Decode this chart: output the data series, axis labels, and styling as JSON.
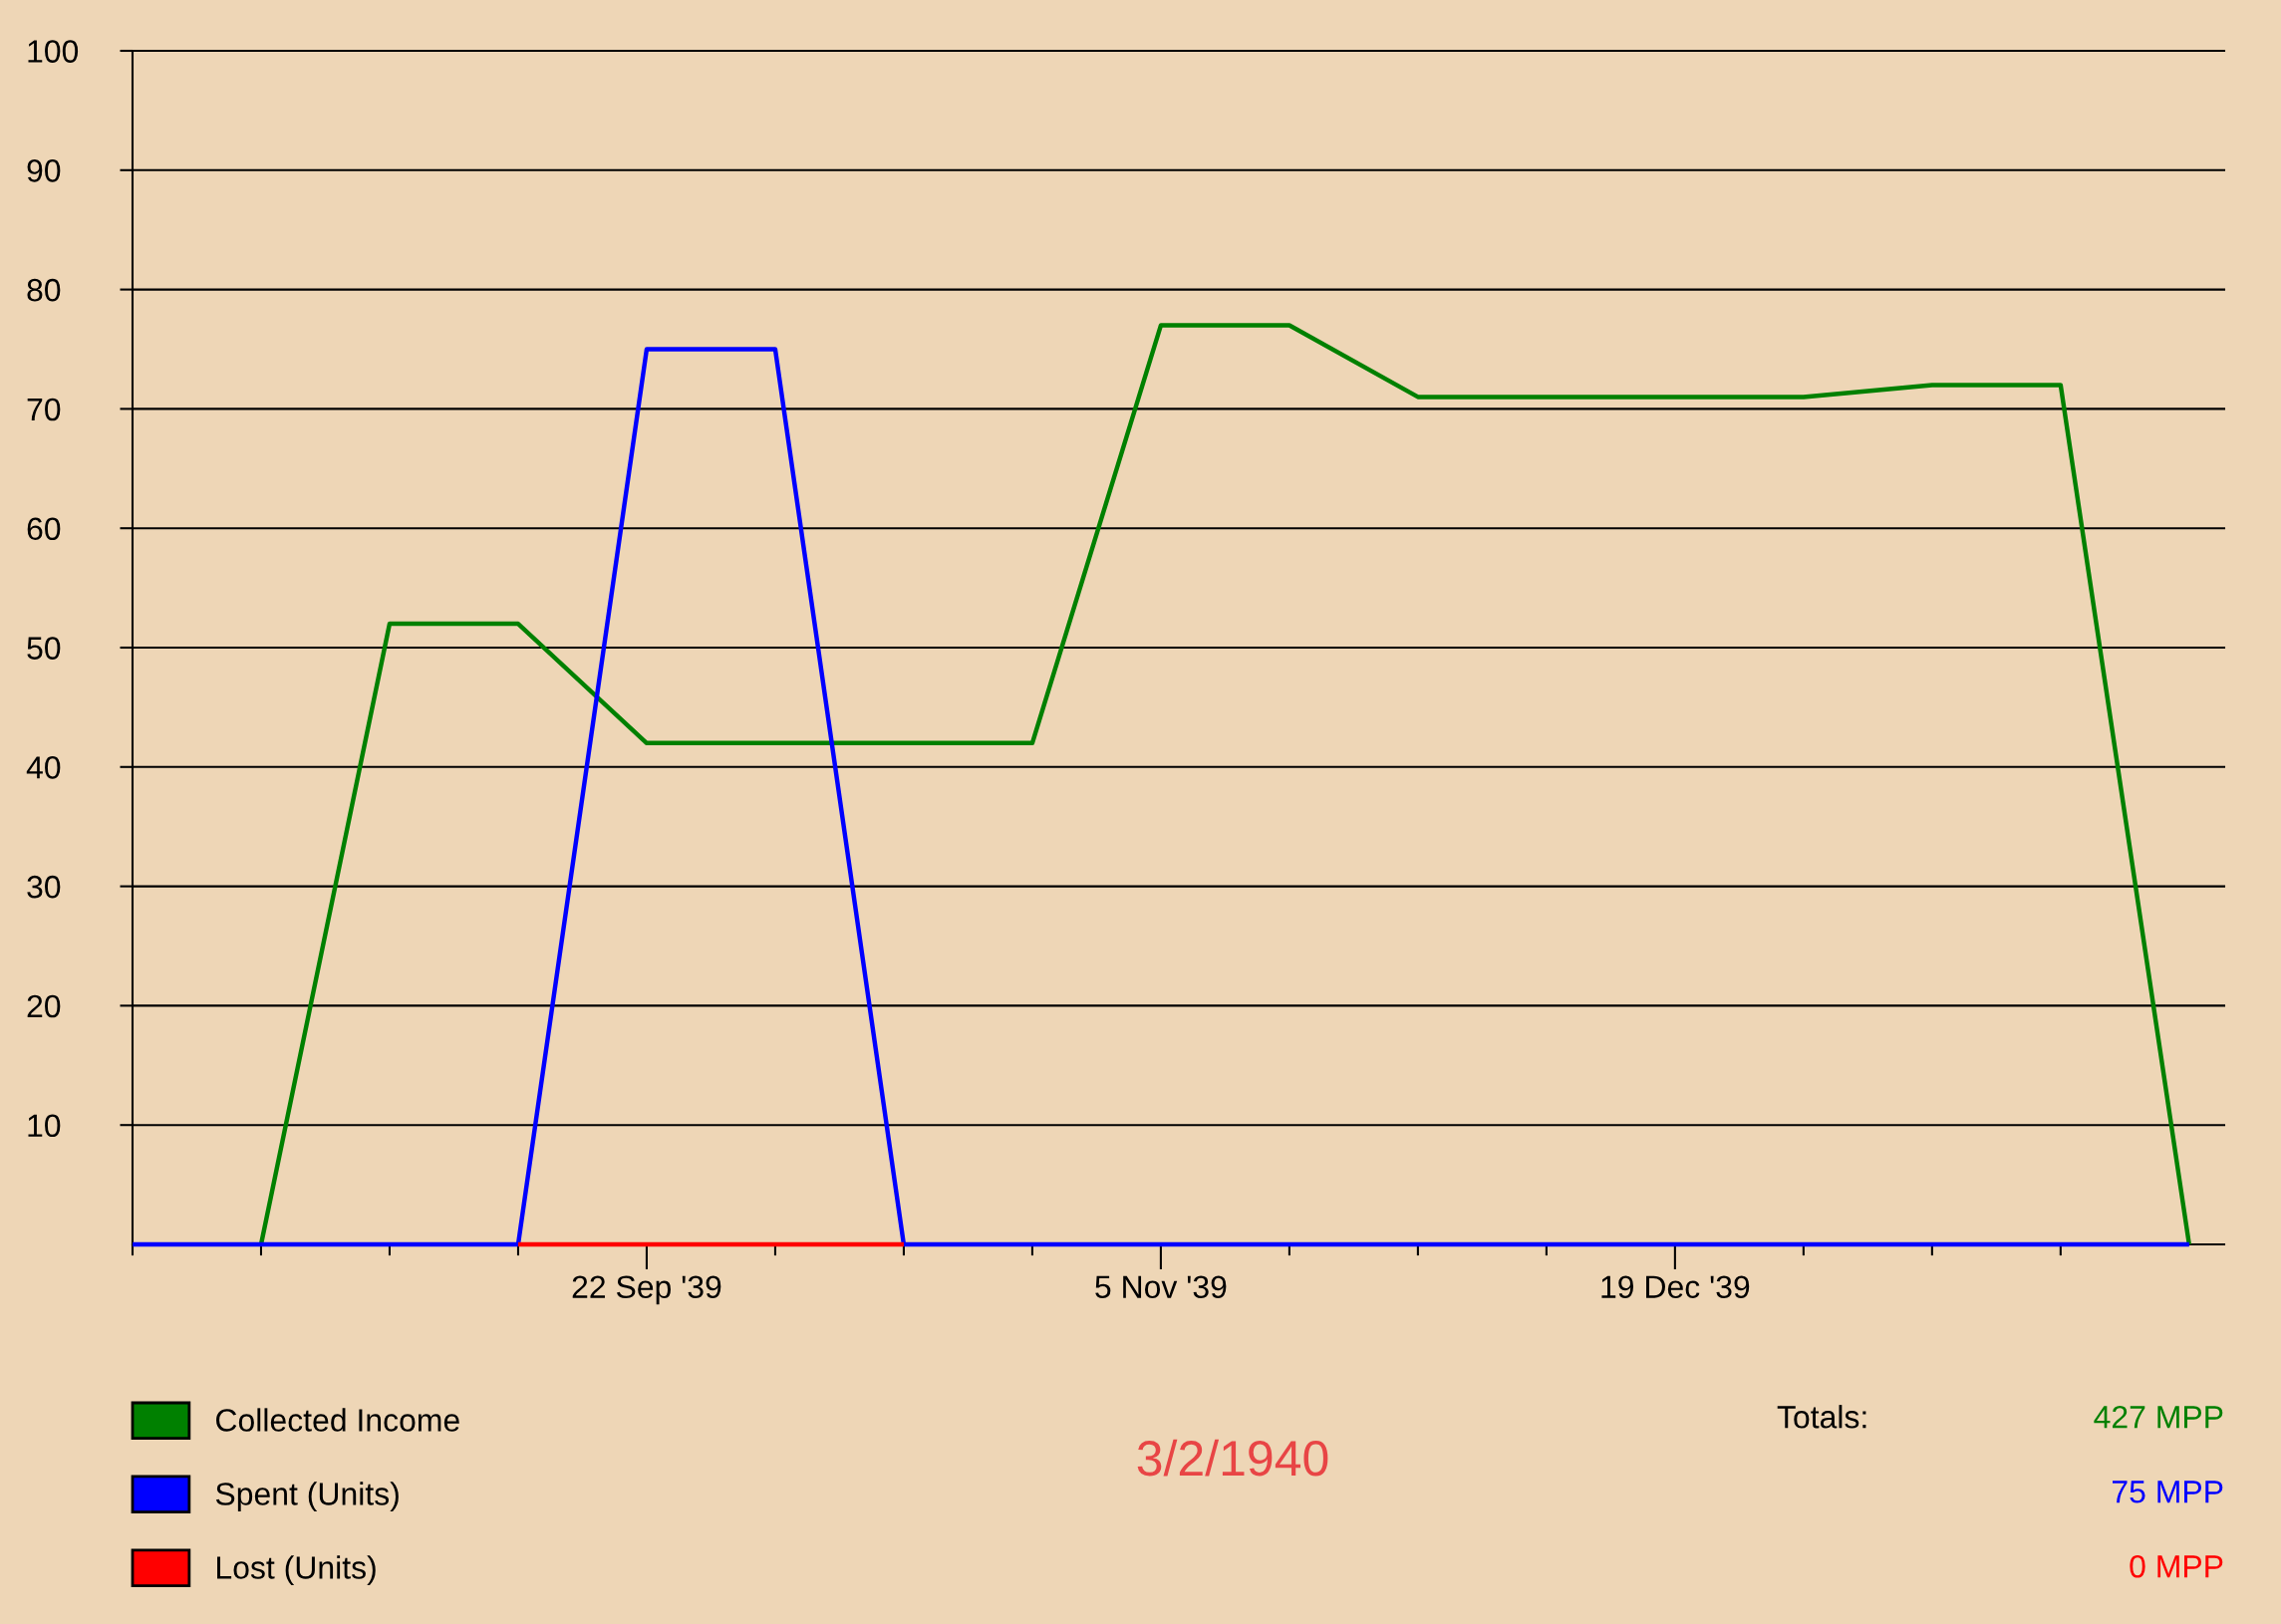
{
  "chart_data": {
    "type": "line",
    "x": [
      "1939-08-09",
      "1939-08-20",
      "1939-08-31",
      "1939-09-11",
      "1939-09-22",
      "1939-10-03",
      "1939-10-14",
      "1939-10-25",
      "1939-11-05",
      "1939-11-16",
      "1939-11-27",
      "1939-12-08",
      "1939-12-19",
      "1939-12-30",
      "1940-01-10",
      "1940-01-21",
      "1940-02-01"
    ],
    "series": [
      {
        "name": "Collected Income",
        "color": "#008000",
        "values": [
          null,
          0,
          52,
          52,
          42,
          42,
          42,
          42,
          77,
          77,
          71,
          71,
          71,
          71,
          72,
          72,
          0
        ]
      },
      {
        "name": "Spent (Units)",
        "color": "#0000ff",
        "values": [
          0,
          0,
          0,
          0,
          75,
          75,
          0,
          0,
          0,
          0,
          0,
          0,
          0,
          0,
          0,
          0,
          0
        ]
      },
      {
        "name": "Lost (Units)",
        "color": "#ff0000",
        "values": [
          null,
          null,
          null,
          0,
          0,
          0,
          0,
          null,
          null,
          null,
          null,
          null,
          null,
          null,
          null,
          null,
          null
        ]
      }
    ],
    "xlim": [
      "1939-08-09",
      "1940-02-04"
    ],
    "xticks": [
      {
        "value": "1939-08-09",
        "label": null
      },
      {
        "value": "1939-08-20",
        "label": null
      },
      {
        "value": "1939-08-31",
        "label": null
      },
      {
        "value": "1939-09-11",
        "label": null
      },
      {
        "value": "1939-09-22",
        "label": "22 Sep '39"
      },
      {
        "value": "1939-10-03",
        "label": null
      },
      {
        "value": "1939-10-14",
        "label": null
      },
      {
        "value": "1939-10-25",
        "label": null
      },
      {
        "value": "1939-11-05",
        "label": "5 Nov '39"
      },
      {
        "value": "1939-11-16",
        "label": null
      },
      {
        "value": "1939-11-27",
        "label": null
      },
      {
        "value": "1939-12-08",
        "label": null
      },
      {
        "value": "1939-12-19",
        "label": "19 Dec '39"
      },
      {
        "value": "1939-12-30",
        "label": null
      },
      {
        "value": "1940-01-10",
        "label": null
      },
      {
        "value": "1940-01-21",
        "label": null
      }
    ],
    "ylim": [
      0,
      100
    ],
    "yticks": [
      10,
      20,
      30,
      40,
      50,
      60,
      70,
      80,
      90,
      100
    ],
    "grid": "y",
    "legend": "bottom left",
    "annotations": [
      "Totals:",
      "427 MPP",
      "75 MPP",
      "0 MPP",
      "3/2/1940"
    ]
  }
}
